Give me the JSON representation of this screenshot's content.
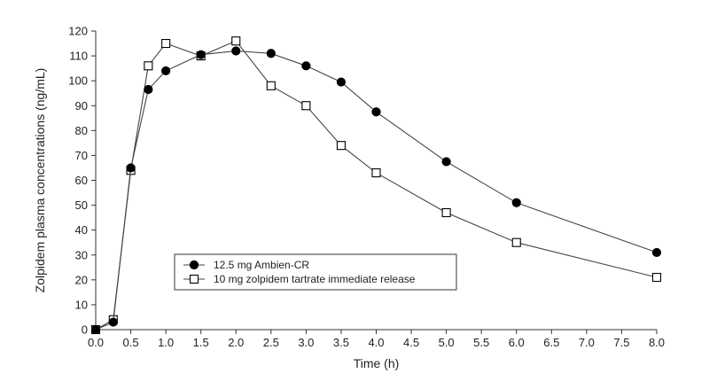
{
  "chart_data": {
    "type": "line",
    "title": "",
    "xlabel": "Time (h)",
    "ylabel": "Zolpidem plasma concentrations (ng/mL)",
    "xlim": [
      0,
      8
    ],
    "ylim": [
      0,
      120
    ],
    "x_ticks": [
      "0.0",
      "0.5",
      "1.0",
      "1.5",
      "2.0",
      "2.5",
      "3.0",
      "3.5",
      "4.0",
      "4.5",
      "5.0",
      "5.5",
      "6.0",
      "6.5",
      "7.0",
      "7.5",
      "8.0"
    ],
    "y_ticks": [
      "0",
      "10",
      "20",
      "30",
      "40",
      "50",
      "60",
      "70",
      "80",
      "90",
      "100",
      "110",
      "120"
    ],
    "grid": false,
    "legend_position": "lower-left",
    "series": [
      {
        "name": "12.5 mg Ambien-CR",
        "marker": "filled-circle",
        "color": "#000000",
        "x": [
          0,
          0.25,
          0.5,
          0.75,
          1.0,
          1.5,
          2.0,
          2.5,
          3.0,
          3.5,
          4.0,
          5.0,
          6.0,
          8.0
        ],
        "y": [
          0,
          3,
          65,
          96.5,
          104,
          110.5,
          112,
          111,
          106,
          99.5,
          87.5,
          67.5,
          51,
          31
        ]
      },
      {
        "name": "10 mg zolpidem tartrate immediate release",
        "marker": "open-square",
        "color": "#000000",
        "x": [
          0,
          0.25,
          0.5,
          0.75,
          1.0,
          1.5,
          2.0,
          2.5,
          3.0,
          3.5,
          4.0,
          5.0,
          6.0,
          8.0
        ],
        "y": [
          0,
          4,
          64,
          106,
          115,
          110,
          116,
          98,
          90,
          74,
          63,
          47,
          35,
          21
        ]
      }
    ]
  }
}
